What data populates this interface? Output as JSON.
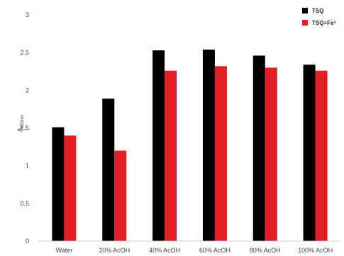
{
  "chart_data": {
    "type": "bar",
    "title": "",
    "xlabel": "",
    "ylabel": {
      "main": "A",
      "sub": "652nm"
    },
    "categories": [
      "Water",
      "20% AcOH",
      "40% AcOH",
      "60% AcOH",
      "80% AcOH",
      "100% AcOH"
    ],
    "series": [
      {
        "name": "TSQ",
        "color": "#000000",
        "values": [
          1.51,
          1.89,
          2.53,
          2.54,
          2.46,
          2.34
        ]
      },
      {
        "name": "TSQ+Fe³",
        "color": "#e31e24",
        "values": [
          1.4,
          1.2,
          2.26,
          2.32,
          2.3,
          2.26
        ]
      }
    ],
    "ylim": [
      0,
      3
    ],
    "yticks": [
      "0",
      "0.5",
      "1",
      "1.5",
      "2",
      "2.5",
      "3"
    ],
    "grid": false,
    "legend": "top-right"
  }
}
